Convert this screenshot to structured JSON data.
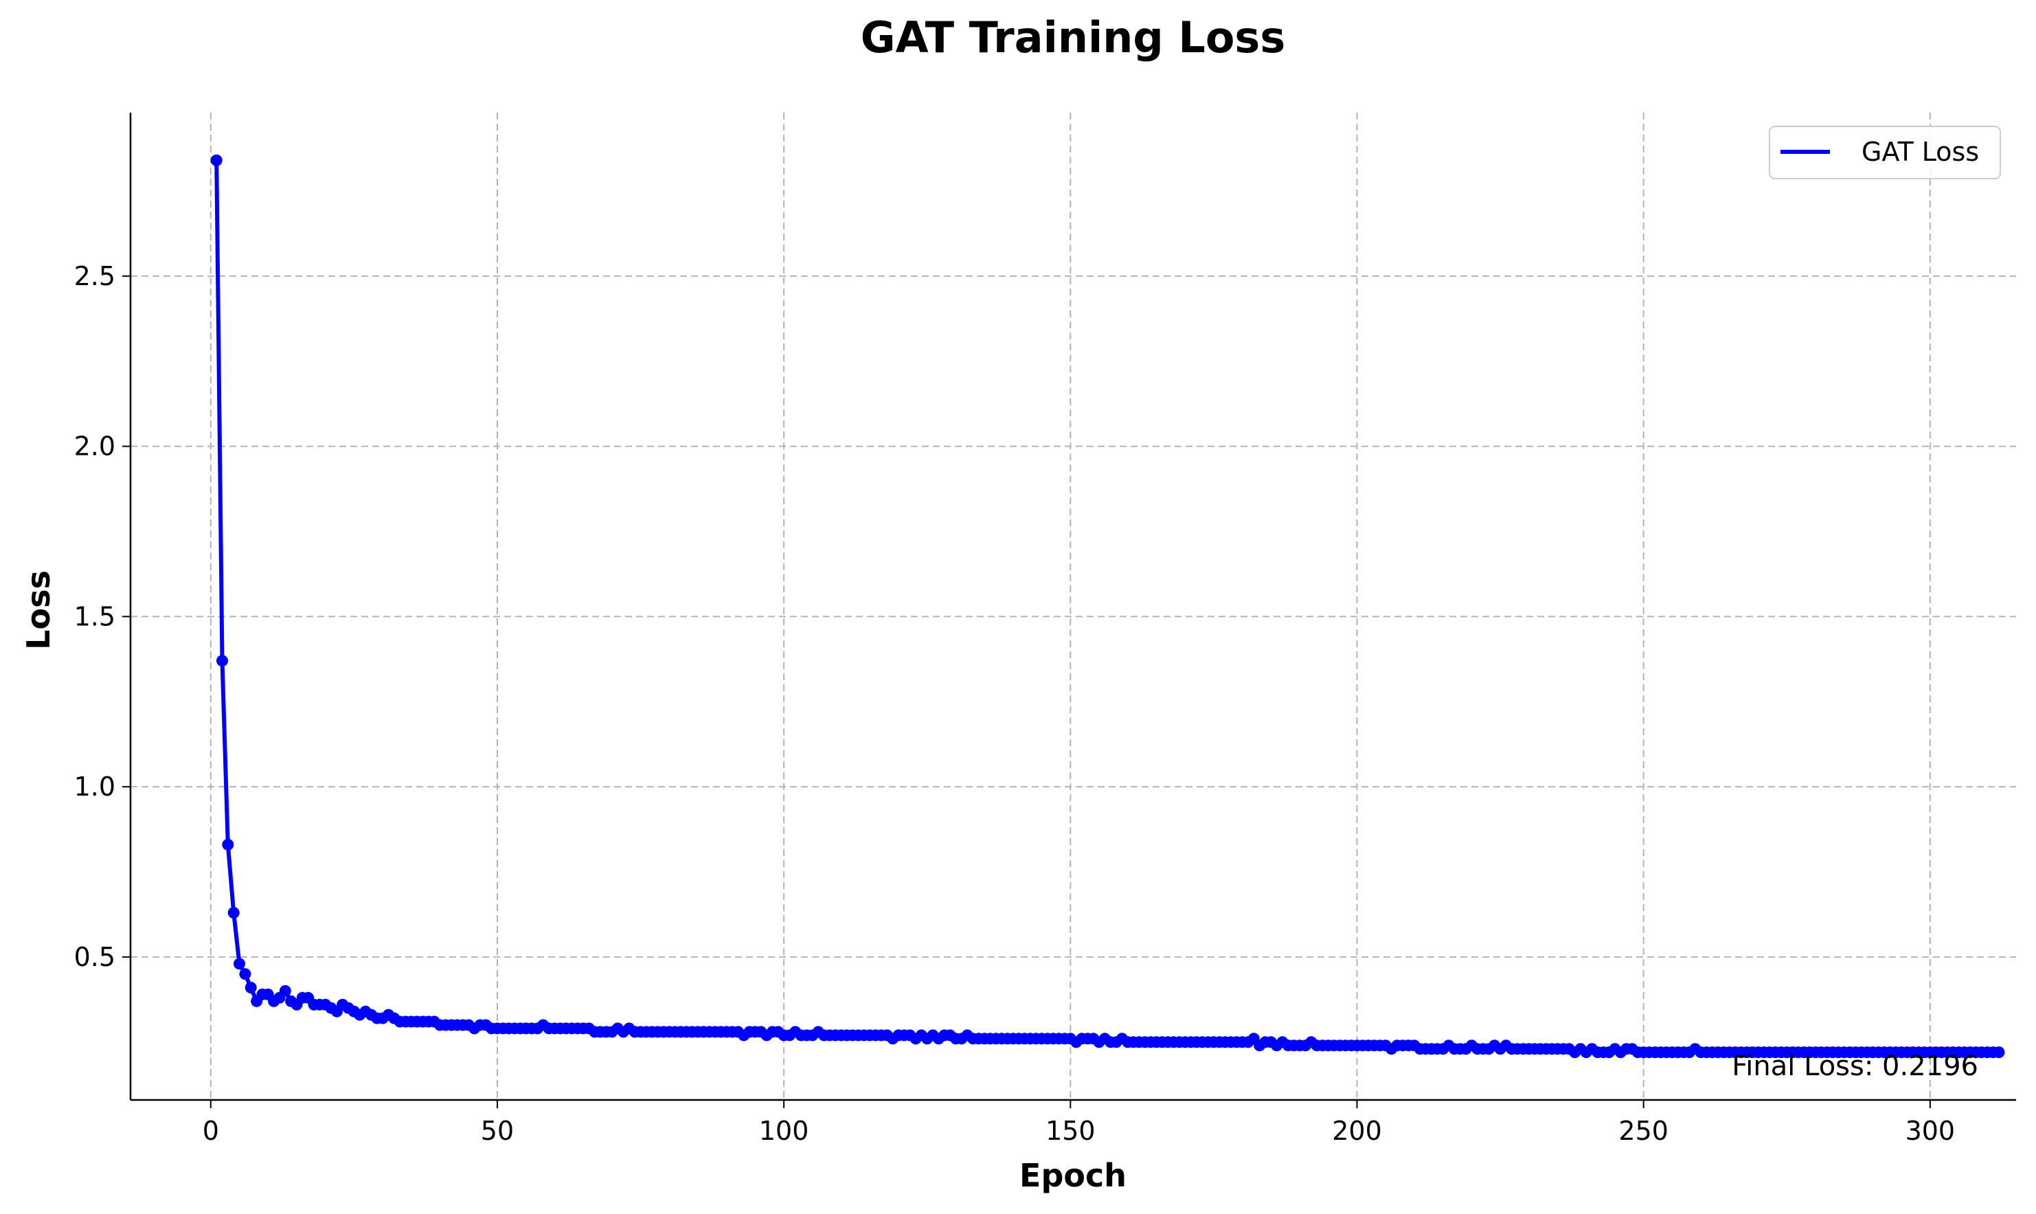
{
  "chart_data": {
    "type": "line",
    "title": "GAT Training Loss",
    "xlabel": "Epoch",
    "ylabel": "Loss",
    "xlim": [
      -14,
      315
    ],
    "ylim": [
      0.08,
      2.98
    ],
    "xticks": [
      0,
      50,
      100,
      150,
      200,
      250,
      300
    ],
    "yticks": [
      0.5,
      1.0,
      1.5,
      2.0,
      2.5
    ],
    "xtick_labels": [
      "0",
      "50",
      "100",
      "150",
      "200",
      "250",
      "300"
    ],
    "ytick_labels": [
      "0.5",
      "1.0",
      "1.5",
      "2.0",
      "2.5"
    ],
    "grid": true,
    "legend_position": "top-right",
    "series": [
      {
        "name": "GAT Loss",
        "color": "#0000ff",
        "x_start": 1,
        "values": [
          2.84,
          1.37,
          0.83,
          0.63,
          0.48,
          0.45,
          0.41,
          0.37,
          0.39,
          0.39,
          0.37,
          0.38,
          0.4,
          0.37,
          0.36,
          0.38,
          0.38,
          0.36,
          0.36,
          0.36,
          0.35,
          0.34,
          0.36,
          0.35,
          0.34,
          0.33,
          0.34,
          0.33,
          0.32,
          0.32,
          0.33,
          0.32,
          0.31,
          0.31,
          0.31,
          0.31,
          0.31,
          0.31,
          0.31,
          0.3,
          0.3,
          0.3,
          0.3,
          0.3,
          0.3,
          0.29,
          0.3,
          0.3,
          0.29,
          0.29,
          0.29,
          0.29,
          0.29,
          0.29,
          0.29,
          0.29,
          0.29,
          0.3,
          0.29,
          0.29,
          0.29,
          0.29,
          0.29,
          0.29,
          0.29,
          0.29,
          0.28,
          0.28,
          0.28,
          0.28,
          0.29,
          0.28,
          0.29,
          0.28,
          0.28,
          0.28,
          0.28,
          0.28,
          0.28,
          0.28,
          0.28,
          0.28,
          0.28,
          0.28,
          0.28,
          0.28,
          0.28,
          0.28,
          0.28,
          0.28,
          0.28,
          0.28,
          0.27,
          0.28,
          0.28,
          0.28,
          0.27,
          0.28,
          0.28,
          0.27,
          0.27,
          0.28,
          0.27,
          0.27,
          0.27,
          0.28,
          0.27,
          0.27,
          0.27,
          0.27,
          0.27,
          0.27,
          0.27,
          0.27,
          0.27,
          0.27,
          0.27,
          0.27,
          0.26,
          0.27,
          0.27,
          0.27,
          0.26,
          0.27,
          0.26,
          0.27,
          0.26,
          0.27,
          0.27,
          0.26,
          0.26,
          0.27,
          0.26,
          0.26,
          0.26,
          0.26,
          0.26,
          0.26,
          0.26,
          0.26,
          0.26,
          0.26,
          0.26,
          0.26,
          0.26,
          0.26,
          0.26,
          0.26,
          0.26,
          0.26,
          0.25,
          0.26,
          0.26,
          0.26,
          0.25,
          0.26,
          0.25,
          0.25,
          0.26,
          0.25,
          0.25,
          0.25,
          0.25,
          0.25,
          0.25,
          0.25,
          0.25,
          0.25,
          0.25,
          0.25,
          0.25,
          0.25,
          0.25,
          0.25,
          0.25,
          0.25,
          0.25,
          0.25,
          0.25,
          0.25,
          0.25,
          0.26,
          0.24,
          0.25,
          0.25,
          0.24,
          0.25,
          0.24,
          0.24,
          0.24,
          0.24,
          0.25,
          0.24,
          0.24,
          0.24,
          0.24,
          0.24,
          0.24,
          0.24,
          0.24,
          0.24,
          0.24,
          0.24,
          0.24,
          0.24,
          0.23,
          0.24,
          0.24,
          0.24,
          0.24,
          0.23,
          0.23,
          0.23,
          0.23,
          0.23,
          0.24,
          0.23,
          0.23,
          0.23,
          0.24,
          0.23,
          0.23,
          0.23,
          0.24,
          0.23,
          0.24,
          0.23,
          0.23,
          0.23,
          0.23,
          0.23,
          0.23,
          0.23,
          0.23,
          0.23,
          0.23,
          0.23,
          0.22,
          0.23,
          0.22,
          0.23,
          0.22,
          0.22,
          0.22,
          0.23,
          0.22,
          0.23,
          0.23,
          0.22,
          0.22,
          0.22,
          0.22,
          0.22,
          0.22,
          0.22,
          0.22,
          0.22,
          0.22,
          0.23,
          0.22,
          0.22,
          0.22,
          0.22,
          0.22,
          0.22,
          0.22,
          0.22,
          0.22,
          0.22,
          0.22,
          0.22,
          0.22,
          0.22,
          0.22,
          0.22,
          0.22,
          0.22,
          0.22,
          0.22,
          0.22,
          0.22,
          0.22,
          0.22,
          0.22,
          0.22,
          0.22,
          0.22,
          0.22,
          0.22,
          0.22,
          0.22,
          0.22,
          0.22,
          0.22,
          0.22,
          0.22,
          0.22,
          0.22,
          0.22,
          0.22,
          0.22,
          0.22,
          0.22,
          0.22,
          0.22,
          0.22,
          0.22,
          0.22,
          0.22,
          0.22,
          0.22,
          0.22
        ]
      }
    ],
    "annotations": [
      {
        "text": "Final Loss: 0.2196",
        "x": 300,
        "y": 0.2196
      }
    ]
  }
}
